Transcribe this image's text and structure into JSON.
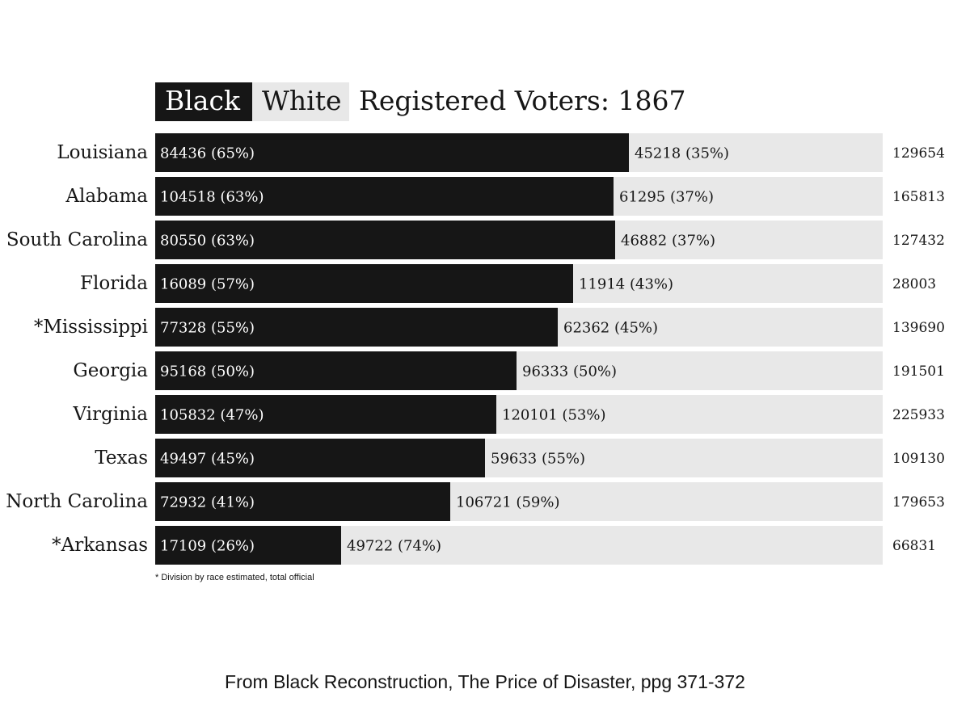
{
  "legend": {
    "black_label": "Black",
    "white_label": "White"
  },
  "title": "Registered Voters: 1867",
  "footnote": "* Division by race estimated, total official",
  "source": "From Black Reconstruction, The Price of Disaster, ppg 371-372",
  "colors": {
    "black_bar": "#161616",
    "white_bar": "#e8e8e8",
    "text_on_dark": "#ffffff",
    "text_on_light": "#161616"
  },
  "chart_data": {
    "type": "bar",
    "orientation": "horizontal",
    "stacked": "100%",
    "title": "Registered Voters: 1867",
    "categories": [
      "Louisiana",
      "Alabama",
      "South Carolina",
      "Florida",
      "*Mississippi",
      "Georgia",
      "Virginia",
      "Texas",
      "North Carolina",
      "*Arkansas"
    ],
    "series": [
      {
        "name": "Black",
        "values": [
          84436,
          104518,
          80550,
          16089,
          77328,
          95168,
          105832,
          49497,
          72932,
          17109
        ],
        "labels": [
          "84436 (65%)",
          "104518 (63%)",
          "80550 (63%)",
          "16089 (57%)",
          "77328 (55%)",
          "95168 (50%)",
          "105832 (47%)",
          "49497 (45%)",
          "72932 (41%)",
          "17109 (26%)"
        ]
      },
      {
        "name": "White",
        "values": [
          45218,
          61295,
          46882,
          11914,
          62362,
          96333,
          120101,
          59633,
          106721,
          49722
        ],
        "labels": [
          "45218 (35%)",
          "61295 (37%)",
          "46882 (37%)",
          "11914 (43%)",
          "62362 (45%)",
          "96333 (50%)",
          "120101 (53%)",
          "59633 (55%)",
          "106721 (59%)",
          "49722 (74%)"
        ]
      }
    ],
    "totals": [
      "129654",
      "165813",
      "127432",
      "28003",
      "139690",
      "191501",
      "225933",
      "109130",
      "179653",
      "66831"
    ]
  }
}
